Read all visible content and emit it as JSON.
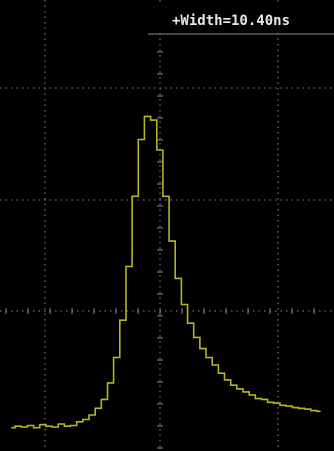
{
  "measurement": {
    "label": "+Width=10.40ns"
  },
  "colors": {
    "background": "#000000",
    "trace": "#b5b522",
    "grid": "#8a8a8a",
    "label_background": "#000000",
    "label_text": "#e8e8e8"
  },
  "chart_data": {
    "type": "line",
    "title": "",
    "xlabel": "",
    "ylabel": "",
    "grid": true,
    "xlim": [
      -3.5,
      4.0
    ],
    "ylim": [
      -1.0,
      3.5
    ],
    "x": [
      -3.5,
      -3.35,
      -3.2,
      -3.05,
      -2.9,
      -2.75,
      -2.6,
      -2.45,
      -2.3,
      -2.15,
      -2.0,
      -1.85,
      -1.7,
      -1.55,
      -1.4,
      -1.25,
      -1.1,
      -0.95,
      -0.8,
      -0.65,
      -0.5,
      -0.35,
      -0.2,
      -0.05,
      0.1,
      0.25,
      0.4,
      0.55,
      0.7,
      0.85,
      1.0,
      1.15,
      1.3,
      1.45,
      1.6,
      1.75,
      1.9,
      2.05,
      2.2,
      2.35,
      2.5,
      2.65,
      2.8,
      2.95,
      3.1,
      3.25,
      3.4,
      3.55,
      3.7,
      3.85,
      4.0
    ],
    "series": [
      {
        "values": [
          -1.05,
          -1.03,
          -1.04,
          -1.02,
          -1.05,
          -1.01,
          -1.03,
          -1.04,
          -1.0,
          -1.03,
          -1.02,
          -0.97,
          -0.94,
          -0.88,
          -0.79,
          -0.67,
          -0.45,
          -0.11,
          0.39,
          1.11,
          2.05,
          2.81,
          3.12,
          3.07,
          2.67,
          2.05,
          1.45,
          0.95,
          0.6,
          0.35,
          0.16,
          0.01,
          -0.11,
          -0.21,
          -0.32,
          -0.41,
          -0.48,
          -0.53,
          -0.57,
          -0.61,
          -0.66,
          -0.67,
          -0.71,
          -0.72,
          -0.75,
          -0.76,
          -0.78,
          -0.79,
          -0.8,
          -0.82,
          -0.83
        ]
      }
    ]
  }
}
